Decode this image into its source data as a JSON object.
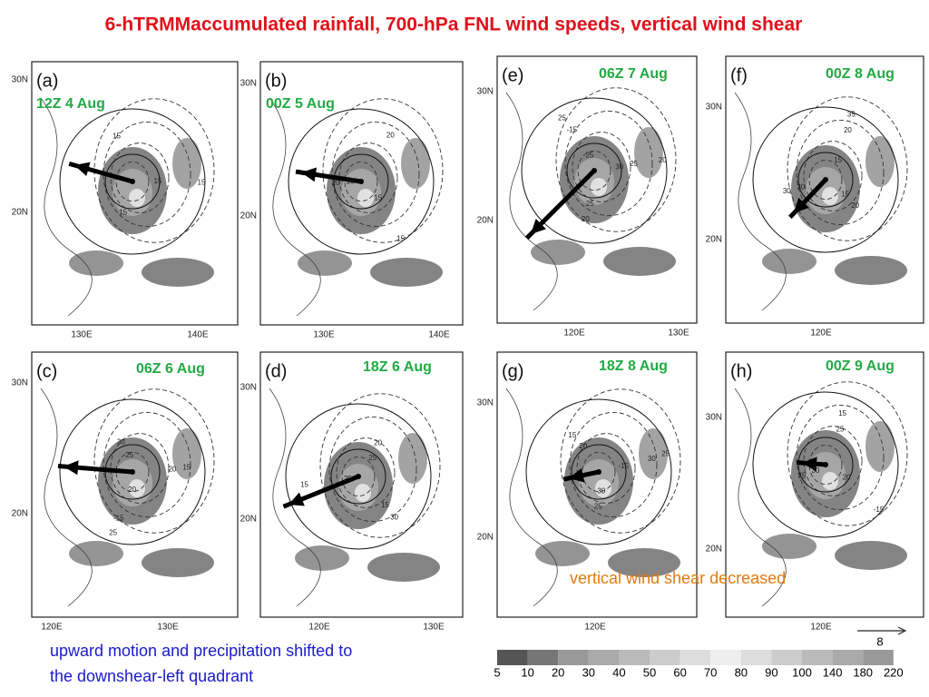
{
  "title": "6-hTRMMaccumulated rainfall, 700-hPa FNL wind speeds, vertical wind shear",
  "panels": [
    {
      "label": "(a)",
      "time": "12Z 4 Aug",
      "lat": [
        "30N",
        "20N"
      ],
      "lon": [
        "130E",
        "140E"
      ],
      "contours": [
        "15",
        "15",
        "15",
        "15"
      ]
    },
    {
      "label": "(b)",
      "time": "00Z 5 Aug",
      "lat": [
        "30N",
        "20N"
      ],
      "lon": [
        "130E",
        "140E"
      ],
      "contours": [
        "15",
        "20",
        "20",
        "15",
        "15"
      ]
    },
    {
      "label": "(c)",
      "time": "06Z 6 Aug",
      "lat": [
        "30N",
        "20N"
      ],
      "lon": [
        "120E",
        "130E"
      ],
      "contours": [
        "20",
        "30",
        "15",
        "25",
        "25",
        "20",
        "-15"
      ]
    },
    {
      "label": "(d)",
      "time": "18Z 6 Aug",
      "lat": [
        "30N",
        "20N"
      ],
      "lon": [
        "120E",
        "130E"
      ],
      "contours": [
        "25",
        "20",
        "30",
        "15",
        "25",
        "15"
      ]
    },
    {
      "label": "(e)",
      "time": "06Z 7 Aug",
      "lat": [
        "30N",
        "20N"
      ],
      "lon": [
        "120E",
        "130E"
      ],
      "contours": [
        "25",
        "25",
        "20",
        "25",
        "30",
        "25",
        "-15",
        "20"
      ]
    },
    {
      "label": "(f)",
      "time": "00Z 8 Aug",
      "lat": [
        "30N",
        "20N"
      ],
      "lon": [
        "120E"
      ],
      "contours": [
        "15",
        "20",
        "30",
        "35",
        "15",
        "30",
        "20"
      ]
    },
    {
      "label": "(g)",
      "time": "18Z 8 Aug",
      "lat": [
        "30N",
        "20N"
      ],
      "lon": [
        "120E"
      ],
      "contours": [
        "-15",
        "25",
        "15",
        "25",
        "30",
        "20",
        "30"
      ]
    },
    {
      "label": "(h)",
      "time": "00Z 9 Aug",
      "lat": [
        "30N",
        "20N"
      ],
      "lon": [
        "120E"
      ],
      "contours": [
        "20",
        "25",
        "15",
        "-15",
        "30",
        "25"
      ]
    }
  ],
  "annotations": {
    "left": [
      "upward motion and precipitation shifted to",
      "the downshear-left quadrant"
    ],
    "right": "vertical wind shear decreased"
  },
  "colorbar": [
    "5",
    "10",
    "20",
    "30",
    "40",
    "50",
    "60",
    "70",
    "80",
    "90",
    "100",
    "140",
    "180",
    "220"
  ],
  "arrow_scale": "8"
}
